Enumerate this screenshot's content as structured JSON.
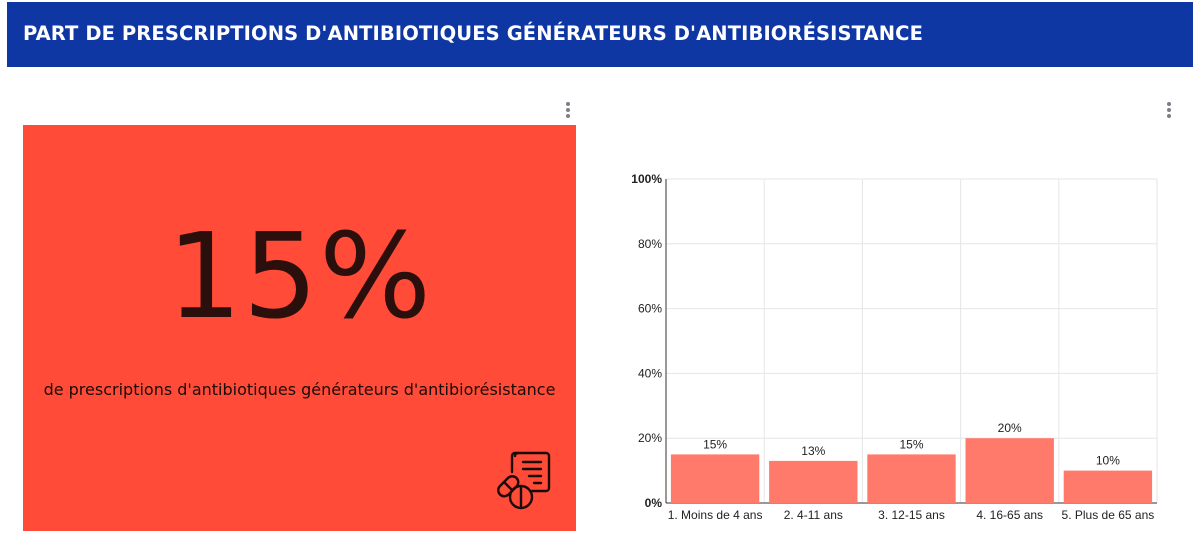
{
  "header": {
    "title": "PART DE PRESCRIPTIONS D'ANTIBIOTIQUES GÉNÉRATEURS D'ANTIBIORÉSISTANCE"
  },
  "kpi": {
    "value": "15%",
    "caption": "de prescriptions d'antibiotiques générateurs d'antibiorésistance",
    "background": "#ff4b37",
    "icon": "prescription-pills-icon"
  },
  "colors": {
    "header": "#0f37a3",
    "bar": "#ff7a6b"
  },
  "chart_data": {
    "type": "bar",
    "categories": [
      "1. Moins de 4 ans",
      "2. 4-11 ans",
      "3. 12-15 ans",
      "4. 16-65 ans",
      "5. Plus de 65 ans"
    ],
    "values": [
      15,
      13,
      15,
      20,
      10
    ],
    "data_labels": [
      "15%",
      "13%",
      "15%",
      "20%",
      "10%"
    ],
    "ylim": [
      0,
      100
    ],
    "yticks": [
      "0%",
      "20%",
      "40%",
      "60%",
      "80%",
      "100%"
    ],
    "grid": true,
    "title": "",
    "xlabel": "",
    "ylabel": ""
  }
}
